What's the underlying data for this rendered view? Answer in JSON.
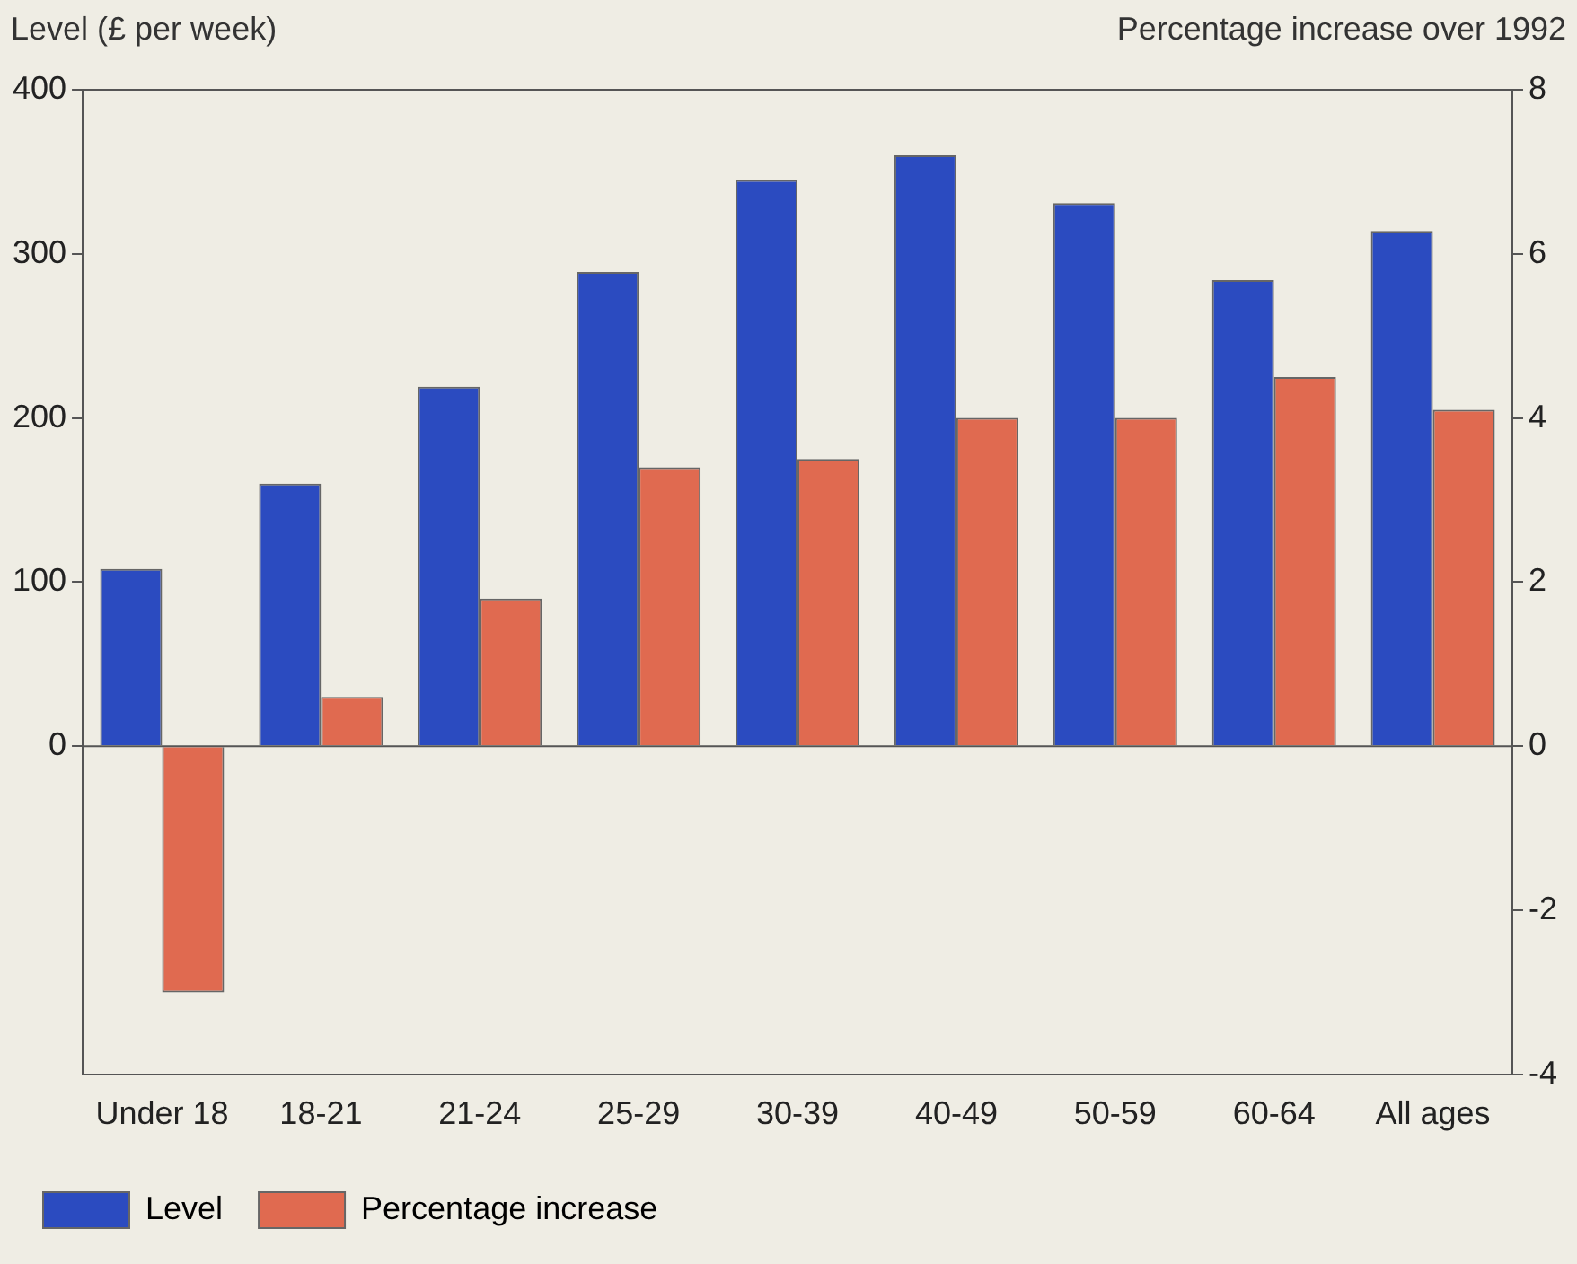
{
  "chart_data": {
    "type": "bar",
    "ylabel": "Level (£ per week)",
    "y2label": "Percentage increase over 1992",
    "categories": [
      "Under 18",
      "18-21",
      "21-24",
      "25-29",
      "30-39",
      "40-49",
      "50-59",
      "60-64",
      "All ages"
    ],
    "series": [
      {
        "name": "Level",
        "color": "#2b4bc0",
        "values": [
          108,
          160,
          219,
          289,
          345,
          360,
          331,
          284,
          314
        ]
      },
      {
        "name": "Percentage increase",
        "color": "#e06a50",
        "axis": "y2",
        "values": [
          -3.0,
          0.6,
          1.8,
          3.4,
          3.5,
          4.0,
          4.0,
          4.5,
          4.1
        ]
      }
    ],
    "ylim": [
      -200,
      400
    ],
    "yticks": [
      0,
      100,
      200,
      300,
      400
    ],
    "y2lim": [
      -4,
      8
    ],
    "y2ticks": [
      -4,
      -2,
      0,
      2,
      4,
      6,
      8
    ],
    "ref_lines": [
      {
        "axis": "y",
        "value": 0,
        "color": "#555555"
      }
    ],
    "legend": "bottom left"
  }
}
